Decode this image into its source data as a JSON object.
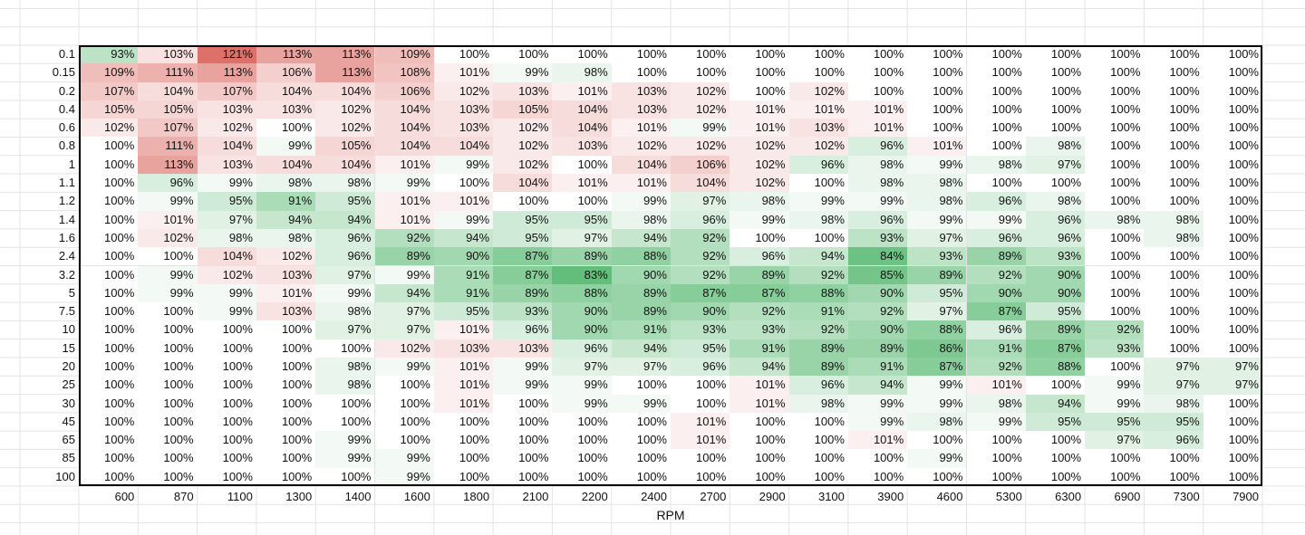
{
  "table": {
    "row_labels": [
      "0.1",
      "0.15",
      "0.2",
      "0.4",
      "0.6",
      "0.8",
      "1",
      "1.1",
      "1.2",
      "1.4",
      "1.6",
      "2.4",
      "3.2",
      "5",
      "7.5",
      "10",
      "15",
      "20",
      "25",
      "30",
      "45",
      "65",
      "85",
      "100"
    ],
    "column_labels": [
      "600",
      "870",
      "1100",
      "1300",
      "1400",
      "1600",
      "1800",
      "2100",
      "2200",
      "2400",
      "2700",
      "2900",
      "3100",
      "3900",
      "4600",
      "5300",
      "6300",
      "6900",
      "7300",
      "7900"
    ],
    "axis_label": "RPM",
    "rows": [
      [
        "93%",
        "103%",
        "121%",
        "113%",
        "113%",
        "109%",
        "100%",
        "100%",
        "100%",
        "100%",
        "100%",
        "100%",
        "100%",
        "100%",
        "100%",
        "100%",
        "100%",
        "100%",
        "100%",
        "100%"
      ],
      [
        "109%",
        "111%",
        "113%",
        "106%",
        "113%",
        "108%",
        "101%",
        "99%",
        "98%",
        "100%",
        "100%",
        "100%",
        "100%",
        "100%",
        "100%",
        "100%",
        "100%",
        "100%",
        "100%",
        "100%"
      ],
      [
        "107%",
        "104%",
        "107%",
        "104%",
        "104%",
        "106%",
        "102%",
        "103%",
        "101%",
        "103%",
        "102%",
        "100%",
        "102%",
        "100%",
        "100%",
        "100%",
        "100%",
        "100%",
        "100%",
        "100%"
      ],
      [
        "105%",
        "105%",
        "103%",
        "103%",
        "102%",
        "104%",
        "103%",
        "105%",
        "104%",
        "103%",
        "102%",
        "101%",
        "101%",
        "101%",
        "100%",
        "100%",
        "100%",
        "100%",
        "100%",
        "100%"
      ],
      [
        "102%",
        "107%",
        "102%",
        "100%",
        "102%",
        "104%",
        "103%",
        "102%",
        "104%",
        "101%",
        "99%",
        "101%",
        "103%",
        "101%",
        "100%",
        "100%",
        "100%",
        "100%",
        "100%",
        "100%"
      ],
      [
        "100%",
        "111%",
        "104%",
        "99%",
        "105%",
        "104%",
        "104%",
        "102%",
        "103%",
        "102%",
        "102%",
        "102%",
        "102%",
        "96%",
        "101%",
        "100%",
        "98%",
        "100%",
        "100%",
        "100%"
      ],
      [
        "100%",
        "113%",
        "103%",
        "104%",
        "104%",
        "101%",
        "99%",
        "102%",
        "100%",
        "104%",
        "106%",
        "102%",
        "96%",
        "98%",
        "99%",
        "98%",
        "97%",
        "100%",
        "100%",
        "100%"
      ],
      [
        "100%",
        "96%",
        "99%",
        "98%",
        "98%",
        "99%",
        "100%",
        "104%",
        "101%",
        "101%",
        "104%",
        "102%",
        "100%",
        "98%",
        "98%",
        "100%",
        "100%",
        "100%",
        "100%",
        "100%"
      ],
      [
        "100%",
        "99%",
        "95%",
        "91%",
        "95%",
        "101%",
        "101%",
        "100%",
        "100%",
        "99%",
        "97%",
        "98%",
        "99%",
        "99%",
        "98%",
        "96%",
        "98%",
        "100%",
        "100%",
        "100%"
      ],
      [
        "100%",
        "101%",
        "97%",
        "94%",
        "94%",
        "101%",
        "99%",
        "95%",
        "95%",
        "98%",
        "96%",
        "99%",
        "98%",
        "96%",
        "99%",
        "99%",
        "96%",
        "98%",
        "98%",
        "100%"
      ],
      [
        "100%",
        "102%",
        "98%",
        "98%",
        "96%",
        "92%",
        "94%",
        "95%",
        "97%",
        "94%",
        "92%",
        "100%",
        "100%",
        "93%",
        "97%",
        "96%",
        "96%",
        "100%",
        "98%",
        "100%"
      ],
      [
        "100%",
        "100%",
        "104%",
        "102%",
        "96%",
        "89%",
        "90%",
        "87%",
        "89%",
        "88%",
        "92%",
        "96%",
        "94%",
        "84%",
        "93%",
        "89%",
        "93%",
        "100%",
        "100%",
        "100%"
      ],
      [
        "100%",
        "99%",
        "102%",
        "103%",
        "97%",
        "99%",
        "91%",
        "87%",
        "83%",
        "90%",
        "92%",
        "89%",
        "92%",
        "85%",
        "89%",
        "92%",
        "90%",
        "100%",
        "100%",
        "100%"
      ],
      [
        "100%",
        "99%",
        "99%",
        "101%",
        "99%",
        "94%",
        "91%",
        "89%",
        "88%",
        "89%",
        "87%",
        "87%",
        "88%",
        "90%",
        "95%",
        "90%",
        "90%",
        "100%",
        "100%",
        "100%"
      ],
      [
        "100%",
        "100%",
        "99%",
        "103%",
        "98%",
        "97%",
        "95%",
        "93%",
        "90%",
        "89%",
        "90%",
        "92%",
        "91%",
        "92%",
        "97%",
        "87%",
        "95%",
        "100%",
        "100%",
        "100%"
      ],
      [
        "100%",
        "100%",
        "100%",
        "100%",
        "97%",
        "97%",
        "101%",
        "96%",
        "90%",
        "91%",
        "93%",
        "93%",
        "92%",
        "90%",
        "88%",
        "96%",
        "89%",
        "92%",
        "100%",
        "100%"
      ],
      [
        "100%",
        "100%",
        "100%",
        "100%",
        "100%",
        "102%",
        "103%",
        "103%",
        "96%",
        "94%",
        "95%",
        "91%",
        "89%",
        "89%",
        "86%",
        "91%",
        "87%",
        "93%",
        "100%",
        "100%"
      ],
      [
        "100%",
        "100%",
        "100%",
        "100%",
        "98%",
        "99%",
        "101%",
        "99%",
        "97%",
        "97%",
        "96%",
        "94%",
        "89%",
        "91%",
        "87%",
        "92%",
        "88%",
        "100%",
        "97%",
        "97%"
      ],
      [
        "100%",
        "100%",
        "100%",
        "100%",
        "98%",
        "100%",
        "101%",
        "99%",
        "99%",
        "100%",
        "100%",
        "101%",
        "96%",
        "94%",
        "99%",
        "101%",
        "100%",
        "99%",
        "97%",
        "97%"
      ],
      [
        "100%",
        "100%",
        "100%",
        "100%",
        "100%",
        "100%",
        "101%",
        "100%",
        "99%",
        "99%",
        "100%",
        "101%",
        "98%",
        "99%",
        "99%",
        "98%",
        "94%",
        "99%",
        "98%",
        "100%"
      ],
      [
        "100%",
        "100%",
        "100%",
        "100%",
        "100%",
        "100%",
        "100%",
        "100%",
        "100%",
        "100%",
        "101%",
        "100%",
        "100%",
        "99%",
        "98%",
        "99%",
        "95%",
        "95%",
        "95%",
        "100%"
      ],
      [
        "100%",
        "100%",
        "100%",
        "100%",
        "99%",
        "100%",
        "100%",
        "100%",
        "100%",
        "100%",
        "101%",
        "100%",
        "100%",
        "101%",
        "100%",
        "100%",
        "100%",
        "97%",
        "96%",
        "100%"
      ],
      [
        "100%",
        "100%",
        "100%",
        "100%",
        "99%",
        "99%",
        "100%",
        "100%",
        "100%",
        "100%",
        "100%",
        "100%",
        "100%",
        "100%",
        "99%",
        "100%",
        "100%",
        "100%",
        "100%",
        "100%"
      ],
      [
        "100%",
        "100%",
        "100%",
        "100%",
        "100%",
        "99%",
        "100%",
        "100%",
        "100%",
        "100%",
        "100%",
        "100%",
        "100%",
        "100%",
        "100%",
        "100%",
        "100%",
        "100%",
        "100%",
        "100%"
      ]
    ]
  }
}
